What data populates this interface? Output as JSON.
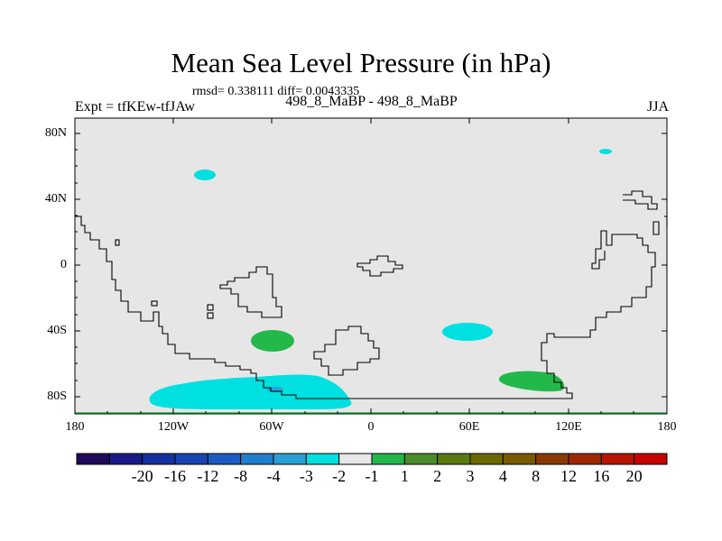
{
  "title": "Mean Sea Level Pressure (in hPa)",
  "stats": "rmsd= 0.338111 diff= 0.0043335",
  "left_label": "Expt = tfKEw-tfJAw",
  "center_label": "498_8_MaBP - 498_8_MaBP",
  "right_label": "JJA",
  "lat_ticks": [
    "80N",
    "40N",
    "0",
    "40S",
    "80S"
  ],
  "lon_ticks": [
    "180",
    "120W",
    "60W",
    "0",
    "60E",
    "120E",
    "180"
  ],
  "colorbar": {
    "colors": [
      "#1f0a5c",
      "#1a1a8c",
      "#1530a0",
      "#1844b4",
      "#1a5cc4",
      "#1f7ed0",
      "#2aa0d8",
      "#00e0e0",
      "#e6e6e6",
      "#22b84a",
      "#4a8c2a",
      "#5a7a10",
      "#6a6a00",
      "#7a5a00",
      "#8a3a00",
      "#a02800",
      "#b81400",
      "#c80000"
    ],
    "labels": [
      "-20",
      "-16",
      "-12",
      "-8",
      "-4",
      "-3",
      "-2",
      "-1",
      "1",
      "2",
      "3",
      "4",
      "8",
      "12",
      "16",
      "20"
    ]
  },
  "colors": {
    "ocean_background": "#e6e6e6",
    "negative_fill": "#00e0e0",
    "positive_fill": "#22b84a",
    "coastline": "#000000"
  }
}
